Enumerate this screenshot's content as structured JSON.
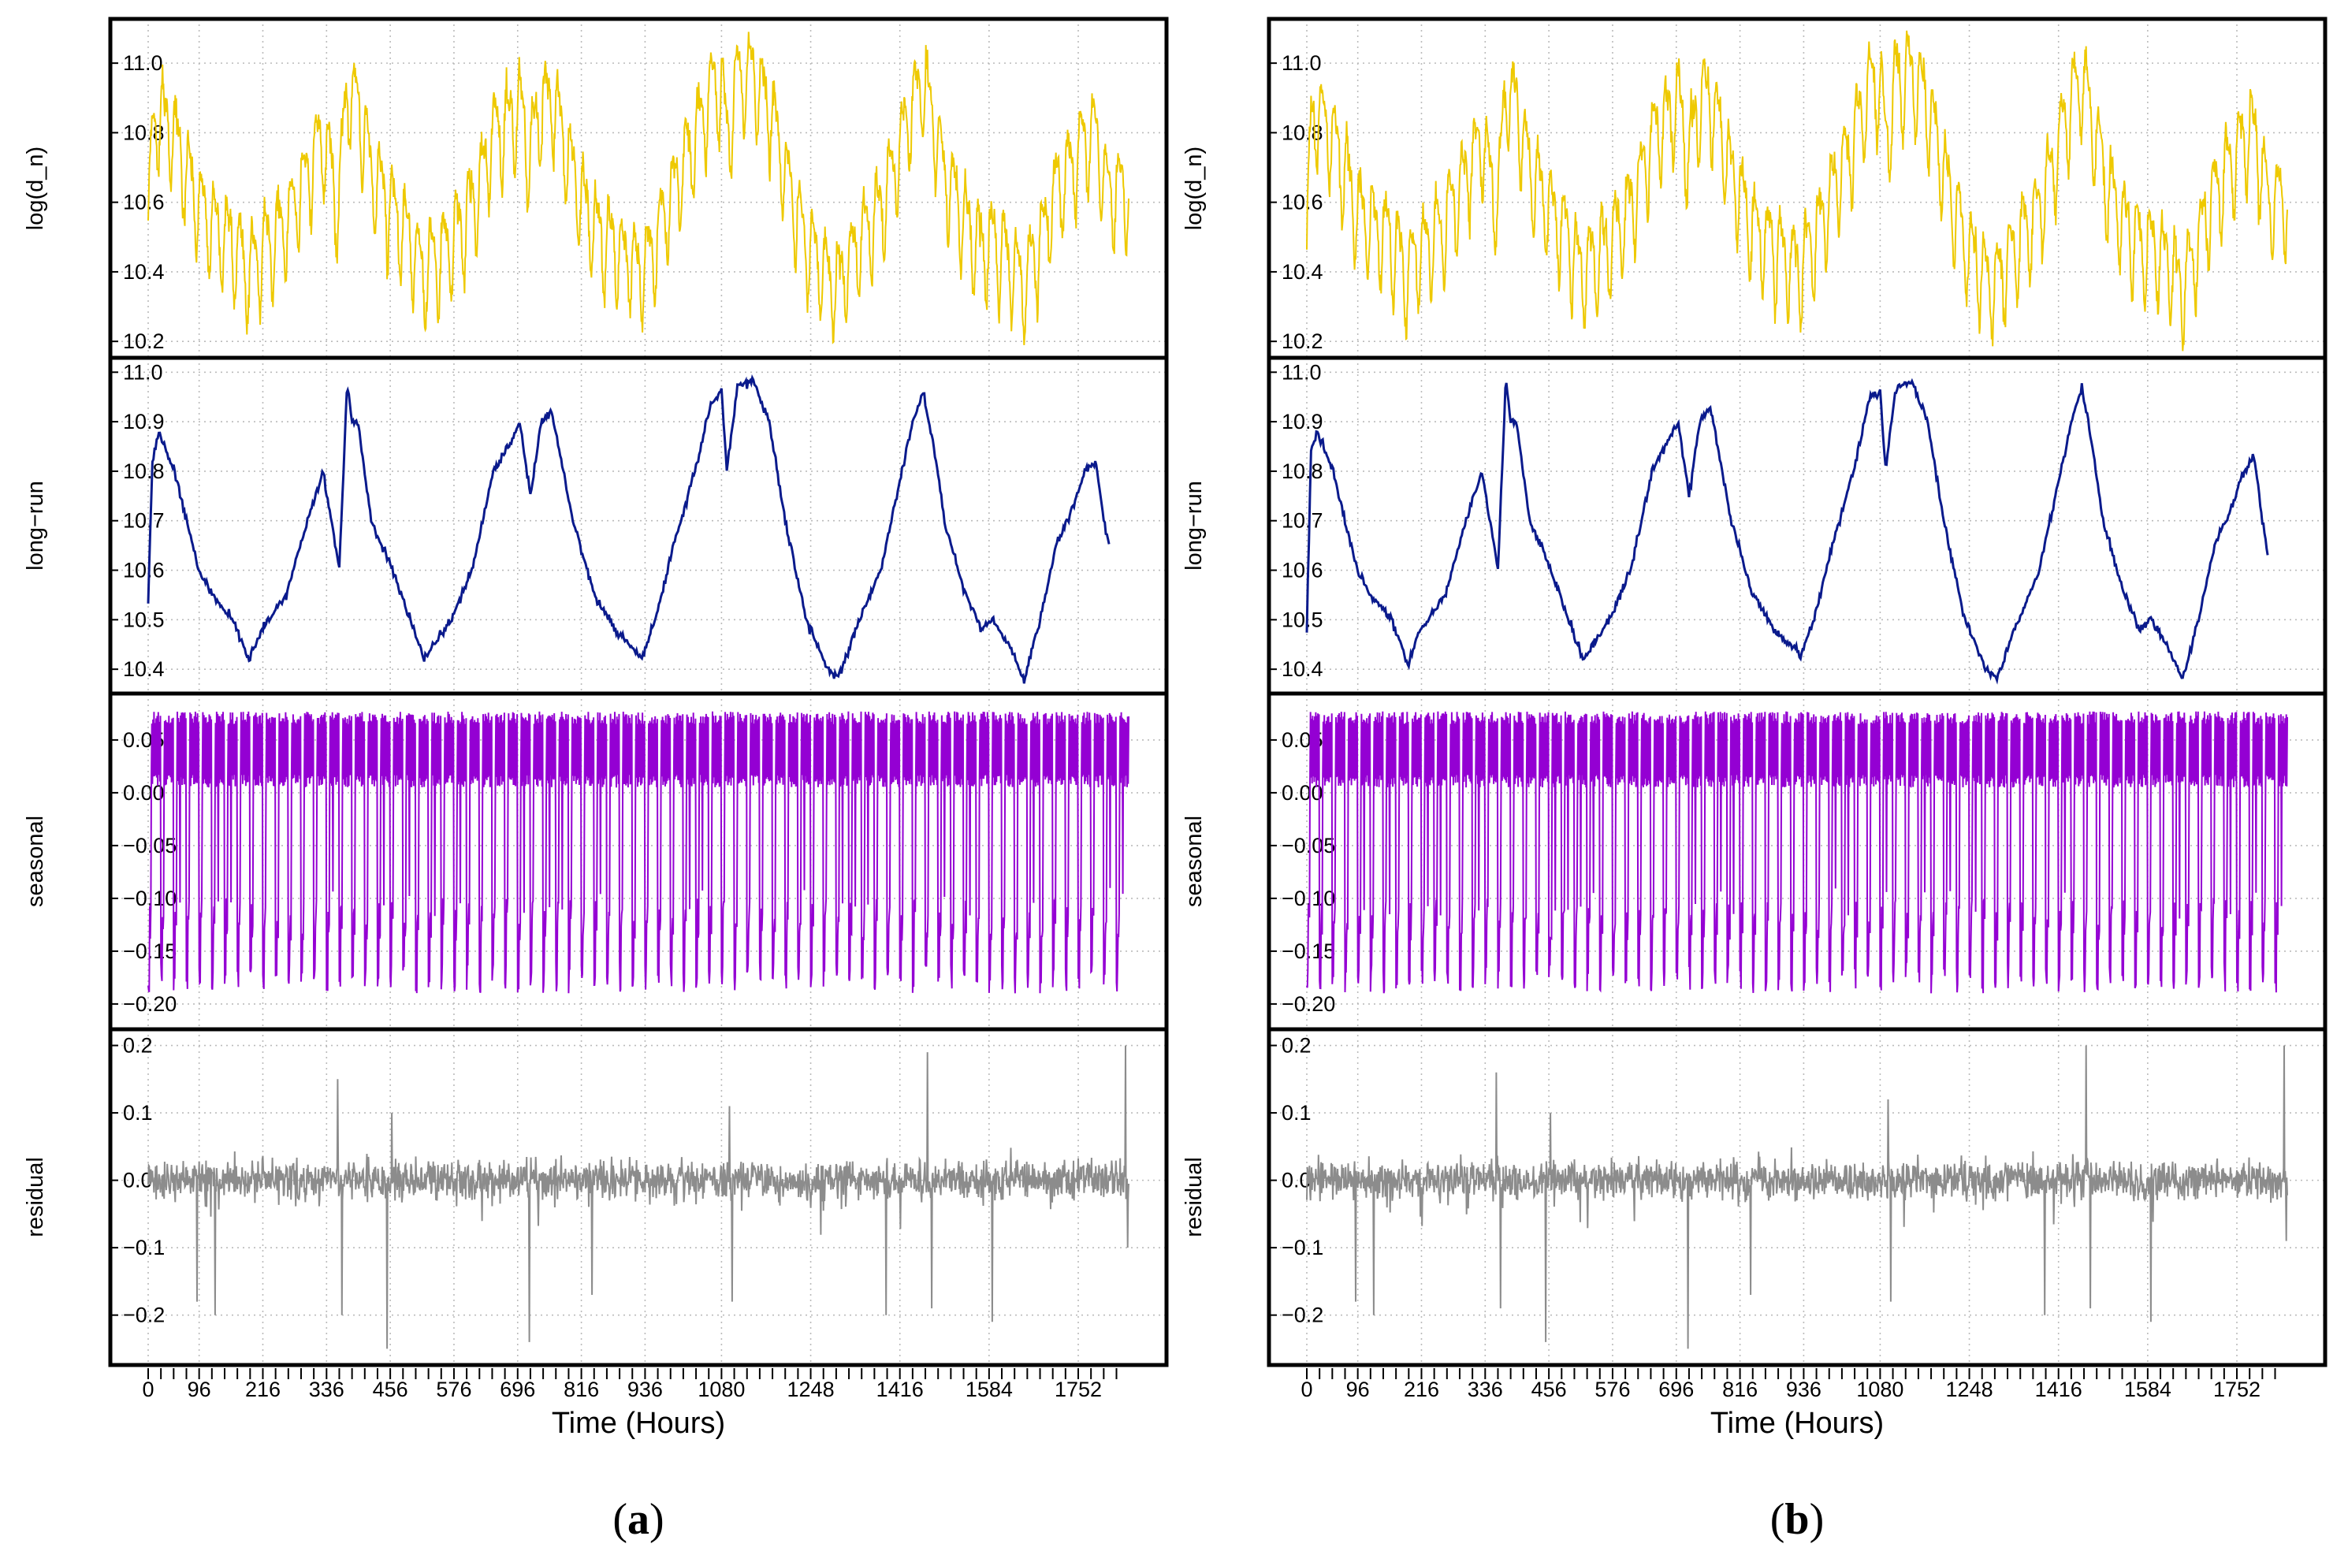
{
  "figure": {
    "panels": [
      {
        "letter": "a",
        "caption_open": "(",
        "caption_close": ")"
      },
      {
        "letter": "b",
        "caption_open": "(",
        "caption_close": ")"
      }
    ]
  },
  "colors": {
    "log_dn": "#EEC900",
    "long_run": "#0A1A8C",
    "seasonal": "#9400D3",
    "residual": "#8C8C8C",
    "frame": "#000000",
    "grid": "#bbbbbb"
  },
  "chart_data": [
    {
      "type": "line",
      "panel": "a",
      "xlabel": "Time (Hours)",
      "xlim": [
        0,
        1847
      ],
      "xticks": [
        0,
        96,
        216,
        336,
        456,
        576,
        696,
        816,
        936,
        1080,
        1248,
        1416,
        1584,
        1752
      ],
      "grid": true,
      "series": [
        {
          "name": "log(d_n)",
          "ylabel": "log(d_n)",
          "ylim": [
            10.18,
            11.1
          ],
          "yticks": [
            10.2,
            10.4,
            10.6,
            10.8,
            11.0
          ],
          "ytick_labels": [
            "10.2",
            "10.4",
            "10.6",
            "10.8",
            "11.0"
          ],
          "description_values": {
            "mean_peaks": [
              10.83,
              10.88,
              10.88,
              10.88,
              10.86,
              10.72
            ],
            "troughs": [
              10.42,
              10.36,
              10.4,
              10.34,
              10.38
            ]
          }
        },
        {
          "name": "long-run",
          "ylabel": "long−run",
          "ylim": [
            10.37,
            11.01
          ],
          "yticks": [
            10.4,
            10.5,
            10.6,
            10.7,
            10.8,
            10.9,
            11.0
          ],
          "ytick_labels": [
            "10.4",
            "10.5",
            "10.6",
            "10.7",
            "10.8",
            "10.9",
            "11.0"
          ],
          "x": [
            0,
            8,
            20,
            50,
            95,
            120,
            160,
            190,
            215,
            260,
            300,
            330,
            360,
            375,
            384,
            395,
            420,
            460,
            520,
            570,
            610,
            650,
            680,
            700,
            720,
            740,
            760,
            800,
            840,
            880,
            930,
            955,
            990,
            1030,
            1060,
            1080,
            1090,
            1110,
            1140,
            1170,
            1200,
            1240,
            1280,
            1300,
            1340,
            1380,
            1420,
            1440,
            1460,
            1480,
            1500,
            1540,
            1570,
            1590,
            1620,
            1650,
            1680,
            1710,
            1740,
            1765,
            1785,
            1800,
            1812
          ],
          "values": [
            10.54,
            10.82,
            10.88,
            10.8,
            10.6,
            10.55,
            10.5,
            10.42,
            10.48,
            10.55,
            10.7,
            10.8,
            10.6,
            10.98,
            10.9,
            10.9,
            10.7,
            10.6,
            10.42,
            10.5,
            10.6,
            10.8,
            10.85,
            10.9,
            10.75,
            10.9,
            10.92,
            10.7,
            10.55,
            10.48,
            10.42,
            10.5,
            10.65,
            10.8,
            10.94,
            10.96,
            10.8,
            10.97,
            10.98,
            10.9,
            10.7,
            10.5,
            10.4,
            10.38,
            10.5,
            10.6,
            10.8,
            10.9,
            10.96,
            10.85,
            10.7,
            10.55,
            10.48,
            10.5,
            10.45,
            10.38,
            10.5,
            10.65,
            10.72,
            10.8,
            10.82,
            10.7,
            10.64
          ]
        },
        {
          "name": "seasonal",
          "ylabel": "seasonal",
          "ylim": [
            -0.215,
            0.085
          ],
          "yticks": [
            -0.2,
            -0.15,
            -0.1,
            -0.05,
            0.0,
            0.05
          ],
          "ytick_labels": [
            "−0.20",
            "−0.15",
            "−0.10",
            "−0.05",
            "0.00",
            "0.05"
          ],
          "period_hours": 24,
          "max": 0.078,
          "min": -0.2
        },
        {
          "name": "residual",
          "ylabel": "residual",
          "ylim": [
            -0.26,
            0.21
          ],
          "yticks": [
            -0.2,
            -0.1,
            0.0,
            0.1,
            0.2
          ],
          "ytick_labels": [
            "−0.2",
            "−0.1",
            "0.0",
            "0.1",
            "0.2"
          ],
          "spikes": [
            [
              92,
              -0.18
            ],
            [
              126,
              -0.2
            ],
            [
              357,
              0.15
            ],
            [
              365,
              -0.2
            ],
            [
              450,
              -0.25
            ],
            [
              459,
              0.1
            ],
            [
              718,
              -0.24
            ],
            [
              836,
              -0.17
            ],
            [
              1095,
              0.11
            ],
            [
              1100,
              -0.18
            ],
            [
              1390,
              -0.2
            ],
            [
              1468,
              0.19
            ],
            [
              1476,
              -0.19
            ],
            [
              1590,
              -0.21
            ],
            [
              1841,
              0.2
            ],
            [
              1845,
              -0.1
            ]
          ]
        }
      ]
    },
    {
      "type": "line",
      "panel": "b",
      "xlabel": "Time (Hours)",
      "xlim": [
        0,
        1847
      ],
      "xticks": [
        0,
        96,
        216,
        336,
        456,
        576,
        696,
        816,
        936,
        1080,
        1248,
        1416,
        1584,
        1752
      ],
      "grid": true,
      "series": [
        {
          "name": "log(d_n)",
          "ylabel": "log(d_n)",
          "ylim": [
            10.18,
            11.1
          ],
          "yticks": [
            10.2,
            10.4,
            10.6,
            10.8,
            11.0
          ],
          "ytick_labels": [
            "10.2",
            "10.4",
            "10.6",
            "10.8",
            "11.0"
          ]
        },
        {
          "name": "long-run",
          "ylabel": "long−run",
          "ylim": [
            10.37,
            11.01
          ],
          "yticks": [
            10.4,
            10.5,
            10.6,
            10.7,
            10.8,
            10.9,
            11.0
          ],
          "ytick_labels": [
            "10.4",
            "10.5",
            "10.6",
            "10.7",
            "10.8",
            "10.9",
            "11.0"
          ],
          "x": [
            0,
            8,
            20,
            50,
            95,
            120,
            160,
            190,
            215,
            260,
            300,
            330,
            360,
            375,
            384,
            395,
            420,
            460,
            520,
            570,
            610,
            650,
            680,
            700,
            720,
            740,
            760,
            800,
            840,
            880,
            930,
            955,
            990,
            1030,
            1060,
            1080,
            1090,
            1110,
            1140,
            1170,
            1200,
            1240,
            1280,
            1300,
            1340,
            1380,
            1420,
            1440,
            1460,
            1480,
            1500,
            1540,
            1570,
            1590,
            1620,
            1650,
            1680,
            1710,
            1740,
            1765,
            1785,
            1800,
            1812
          ],
          "values": [
            10.48,
            10.84,
            10.88,
            10.8,
            10.6,
            10.55,
            10.5,
            10.41,
            10.48,
            10.55,
            10.7,
            10.8,
            10.6,
            10.99,
            10.9,
            10.9,
            10.7,
            10.6,
            10.42,
            10.5,
            10.6,
            10.8,
            10.86,
            10.9,
            10.75,
            10.9,
            10.93,
            10.7,
            10.55,
            10.48,
            10.43,
            10.5,
            10.65,
            10.8,
            10.95,
            10.96,
            10.8,
            10.97,
            10.98,
            10.9,
            10.7,
            10.5,
            10.4,
            10.38,
            10.5,
            10.6,
            10.8,
            10.9,
            10.97,
            10.85,
            10.7,
            10.55,
            10.48,
            10.5,
            10.45,
            10.38,
            10.5,
            10.65,
            10.72,
            10.8,
            10.83,
            10.7,
            10.62
          ]
        },
        {
          "name": "seasonal",
          "ylabel": "seasonal",
          "ylim": [
            -0.215,
            0.085
          ],
          "yticks": [
            -0.2,
            -0.15,
            -0.1,
            -0.05,
            0.0,
            0.05
          ],
          "ytick_labels": [
            "−0.20",
            "−0.15",
            "−0.10",
            "−0.05",
            "0.00",
            "0.05"
          ],
          "period_hours": 24,
          "max": 0.078,
          "min": -0.2
        },
        {
          "name": "residual",
          "ylabel": "residual",
          "ylim": [
            -0.26,
            0.21
          ],
          "yticks": [
            -0.2,
            -0.1,
            0.0,
            0.1,
            0.2
          ],
          "ytick_labels": [
            "−0.2",
            "−0.1",
            "0.0",
            "0.1",
            "0.2"
          ],
          "spikes": [
            [
              92,
              -0.18
            ],
            [
              126,
              -0.2
            ],
            [
              357,
              0.16
            ],
            [
              365,
              -0.19
            ],
            [
              450,
              -0.24
            ],
            [
              459,
              0.1
            ],
            [
              718,
              -0.25
            ],
            [
              836,
              -0.17
            ],
            [
              1095,
              0.12
            ],
            [
              1100,
              -0.18
            ],
            [
              1390,
              -0.2
            ],
            [
              1468,
              0.2
            ],
            [
              1476,
              -0.19
            ],
            [
              1590,
              -0.21
            ],
            [
              1841,
              0.2
            ],
            [
              1845,
              -0.09
            ]
          ]
        }
      ]
    }
  ]
}
